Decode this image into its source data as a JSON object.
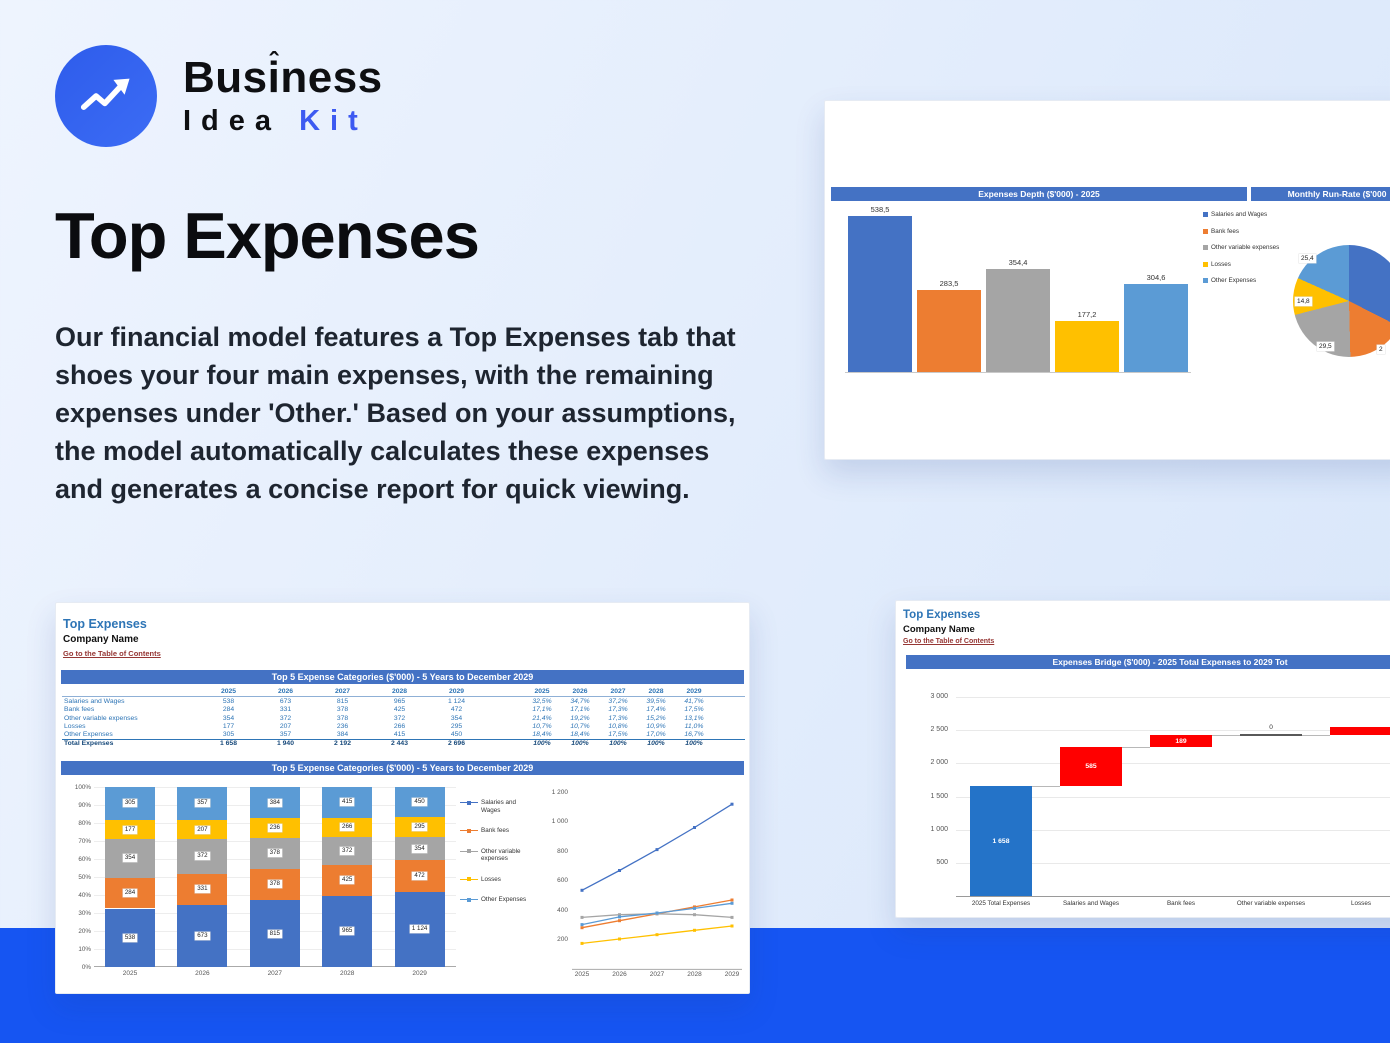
{
  "colors": {
    "series": [
      "#4472C4",
      "#ED7D31",
      "#A5A5A5",
      "#FFC000",
      "#5B9BD5"
    ],
    "header_bar": "#4472C4",
    "report_title": "#2E75B6",
    "toc_link": "#963634",
    "bridge_total": "#2473C8",
    "bridge_increase": "#FF0000",
    "zero_bar": "#595959",
    "bottom_band": "#1655F2",
    "logo_accent": "#3D5AF1"
  },
  "logo": {
    "part1": "Bus",
    "letter_i": "i",
    "caret": "ˆ",
    "part2": "ness",
    "idea": "Idea",
    "kit": "Kit"
  },
  "hero": {
    "title": "Top Expenses",
    "body": "Our financial model features a Top Expenses tab that shoes your four main expenses, with the remaining expenses under 'Other.' Based on your assumptions, the model automatically calculates these expenses and generates a concise report for quick viewing."
  },
  "depth_card": {
    "legend": [
      "Salaries and Wages",
      "Bank fees",
      "Other variable expenses",
      "Losses",
      "Other Expenses"
    ],
    "pie_labels": [
      "25,4",
      "14,8",
      "29,5",
      "2"
    ]
  },
  "report_card": {
    "title": "Top Expenses",
    "company": "Company Name",
    "toc_link": "Go to the Table of Contents",
    "section_title": "Top 5 Expense Categories ($'000) - 5 Years to December 2029",
    "years": [
      "2025",
      "2026",
      "2027",
      "2028",
      "2029"
    ],
    "rows": [
      {
        "label": "Salaries and Wages",
        "values": [
          "538",
          "673",
          "815",
          "965",
          "1 124"
        ],
        "pcts": [
          "32,5%",
          "34,7%",
          "37,2%",
          "39,5%",
          "41,7%"
        ]
      },
      {
        "label": "Bank fees",
        "values": [
          "284",
          "331",
          "378",
          "425",
          "472"
        ],
        "pcts": [
          "17,1%",
          "17,1%",
          "17,3%",
          "17,4%",
          "17,5%"
        ]
      },
      {
        "label": "Other variable expenses",
        "values": [
          "354",
          "372",
          "378",
          "372",
          "354"
        ],
        "pcts": [
          "21,4%",
          "19,2%",
          "17,3%",
          "15,2%",
          "13,1%"
        ]
      },
      {
        "label": "Losses",
        "values": [
          "177",
          "207",
          "236",
          "266",
          "295"
        ],
        "pcts": [
          "10,7%",
          "10,7%",
          "10,8%",
          "10,9%",
          "11,0%"
        ]
      },
      {
        "label": "Other Expenses",
        "values": [
          "305",
          "357",
          "384",
          "415",
          "450"
        ],
        "pcts": [
          "18,4%",
          "18,4%",
          "17,5%",
          "17,0%",
          "16,7%"
        ]
      },
      {
        "label": "Total Expenses",
        "values": [
          "1 658",
          "1 940",
          "2 192",
          "2 443",
          "2 696"
        ],
        "pcts": [
          "100%",
          "100%",
          "100%",
          "100%",
          "100%"
        ],
        "total": true
      }
    ],
    "legend": [
      "Salaries and Wages",
      "Bank fees",
      "Other variable expenses",
      "Losses",
      "Other Expenses"
    ]
  },
  "bridge_card": {
    "title": "Top Expenses",
    "company": "Company Name",
    "toc_link": "Go to the Table of Contents"
  },
  "chart_data": [
    {
      "type": "bar",
      "title": "Expenses Depth ($'000) - 2025",
      "categories": [
        "Salaries and Wages",
        "Bank fees",
        "Other variable expenses",
        "Losses",
        "Other Expenses"
      ],
      "values": [
        538.5,
        283.5,
        354.4,
        177.2,
        304.6
      ],
      "labels": [
        "538,5",
        "283,5",
        "354,4",
        "177,2",
        "304,6"
      ],
      "ylim": [
        0,
        570
      ],
      "legend_position": "right"
    },
    {
      "type": "pie",
      "title": "Monthly Run-Rate ($'000",
      "slices": [
        {
          "name": "Salaries and Wages",
          "pct": 32.5
        },
        {
          "name": "Bank fees",
          "pct": 17.1
        },
        {
          "name": "Other variable expenses",
          "pct": 21.4
        },
        {
          "name": "Losses",
          "pct": 10.7
        },
        {
          "name": "Other Expenses",
          "pct": 18.4
        }
      ],
      "visible_labels": [
        "25,4",
        "14,8",
        "29,5",
        "2"
      ]
    },
    {
      "type": "bar",
      "subtype": "stacked-100",
      "title": "Top 5 Expense Categories ($'000) - 5 Years to December 2029",
      "categories": [
        "2025",
        "2026",
        "2027",
        "2028",
        "2029"
      ],
      "yticks": [
        "100%",
        "90%",
        "80%",
        "70%",
        "60%",
        "50%",
        "40%",
        "30%",
        "20%",
        "10%",
        "0%"
      ],
      "series": [
        {
          "name": "Salaries and Wages",
          "labels": [
            "538",
            "673",
            "815",
            "965",
            "1 124"
          ],
          "pct": [
            32.5,
            34.7,
            37.2,
            39.5,
            41.7
          ]
        },
        {
          "name": "Bank fees",
          "labels": [
            "284",
            "331",
            "378",
            "425",
            "472"
          ],
          "pct": [
            17.1,
            17.1,
            17.3,
            17.4,
            17.5
          ]
        },
        {
          "name": "Other variable expenses",
          "labels": [
            "354",
            "372",
            "378",
            "372",
            "354"
          ],
          "pct": [
            21.4,
            19.2,
            17.3,
            15.2,
            13.1
          ]
        },
        {
          "name": "Losses",
          "labels": [
            "177",
            "207",
            "236",
            "266",
            "295"
          ],
          "pct": [
            10.7,
            10.7,
            10.8,
            10.9,
            11.0
          ]
        },
        {
          "name": "Other Expenses",
          "labels": [
            "305",
            "357",
            "384",
            "415",
            "450"
          ],
          "pct": [
            18.4,
            18.4,
            17.5,
            17.0,
            16.7
          ]
        }
      ]
    },
    {
      "type": "line",
      "categories": [
        "2025",
        "2026",
        "2027",
        "2028",
        "2029"
      ],
      "yticks": [
        "1 200",
        "1 000",
        "800",
        "600",
        "400",
        "200"
      ],
      "ylim": [
        0,
        1200
      ],
      "series": [
        {
          "name": "Salaries and Wages",
          "values": [
            538,
            673,
            815,
            965,
            1124
          ]
        },
        {
          "name": "Bank fees",
          "values": [
            284,
            331,
            378,
            425,
            472
          ]
        },
        {
          "name": "Other variable expenses",
          "values": [
            354,
            372,
            378,
            372,
            354
          ]
        },
        {
          "name": "Losses",
          "values": [
            177,
            207,
            236,
            266,
            295
          ]
        },
        {
          "name": "Other Expenses",
          "values": [
            305,
            357,
            384,
            415,
            450
          ]
        }
      ]
    },
    {
      "type": "waterfall",
      "title": "Expenses Bridge ($'000) - 2025 Total Expenses to 2029 Tot",
      "categories": [
        "2025 Total Expenses",
        "Salaries and Wages",
        "Bank fees",
        "Other variable expenses",
        "Losses"
      ],
      "yticks": [
        "3 000",
        "2 500",
        "2 000",
        "1 500",
        "1 000",
        "500"
      ],
      "ylim": [
        0,
        3000
      ],
      "bars": [
        {
          "start": 0,
          "end": 1658,
          "label": "1 658",
          "kind": "total"
        },
        {
          "start": 1658,
          "end": 2243,
          "label": "585",
          "kind": "increase"
        },
        {
          "start": 2243,
          "end": 2432,
          "label": "189",
          "kind": "increase"
        },
        {
          "start": 2432,
          "end": 2432,
          "label": "0",
          "kind": "zero"
        },
        {
          "start": 2432,
          "end": 2550,
          "label": "",
          "kind": "increase"
        }
      ]
    }
  ]
}
